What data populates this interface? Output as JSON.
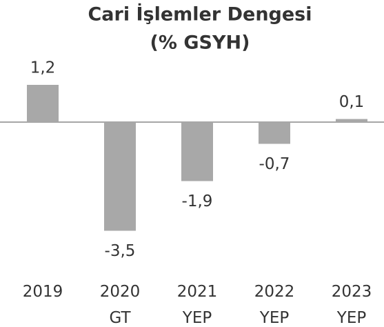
{
  "chart_data": {
    "type": "bar",
    "title": "Cari İşlemler Dengesi",
    "subtitle": "(% GSYH)",
    "categories": [
      "2019",
      "2020 GT",
      "2021 YEP",
      "2022 YEP",
      "2023 YEP"
    ],
    "values": [
      1.2,
      -3.5,
      -1.9,
      -0.7,
      0.1
    ],
    "value_labels": [
      "1,2",
      "-3,5",
      "-1,9",
      "-0,7",
      "0,1"
    ],
    "color": "#a8a8a8"
  }
}
